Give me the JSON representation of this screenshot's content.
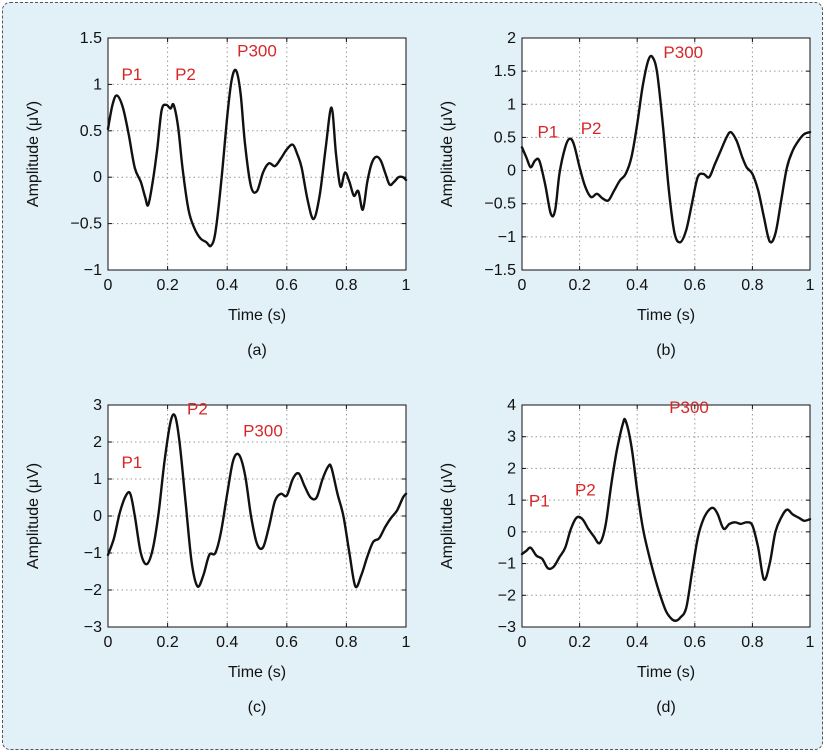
{
  "colors": {
    "background": "#e2f0f8",
    "plot_area": "#ffffff",
    "line": "#111111",
    "annotation": "#d62728",
    "grid": "#9a9a9a"
  },
  "chart_data": [
    {
      "type": "line",
      "caption": "(a)",
      "xlabel": "Time (s)",
      "ylabel": "Amplitude (μV)",
      "xlim": [
        0,
        1
      ],
      "ylim": [
        -1,
        1.5
      ],
      "xticks": [
        0,
        0.2,
        0.4,
        0.6,
        0.8,
        1
      ],
      "yticks": [
        -1,
        -0.5,
        0,
        0.5,
        1,
        1.5
      ],
      "xticklabels": [
        "0",
        "0.2",
        "0.4",
        "0.6",
        "0.8",
        "1"
      ],
      "yticklabels": [
        "−1",
        "−0.5",
        "0",
        "0.5",
        "1",
        "1.5"
      ],
      "grid": true,
      "series": [
        {
          "x": [
            0,
            0.015,
            0.03,
            0.05,
            0.07,
            0.09,
            0.11,
            0.125,
            0.135,
            0.15,
            0.165,
            0.18,
            0.195,
            0.21,
            0.22,
            0.235,
            0.25,
            0.27,
            0.29,
            0.31,
            0.33,
            0.345,
            0.36,
            0.38,
            0.4,
            0.415,
            0.43,
            0.445,
            0.46,
            0.48,
            0.5,
            0.52,
            0.54,
            0.56,
            0.58,
            0.6,
            0.62,
            0.635,
            0.65,
            0.67,
            0.69,
            0.71,
            0.73,
            0.75,
            0.765,
            0.78,
            0.795,
            0.81,
            0.825,
            0.84,
            0.855,
            0.87,
            0.885,
            0.9,
            0.915,
            0.93,
            0.945,
            0.96,
            0.975,
            0.99,
            1.0
          ],
          "y": [
            0.52,
            0.78,
            0.88,
            0.75,
            0.45,
            0.1,
            -0.05,
            -0.22,
            -0.3,
            -0.05,
            0.3,
            0.72,
            0.78,
            0.74,
            0.78,
            0.55,
            0.1,
            -0.35,
            -0.55,
            -0.66,
            -0.7,
            -0.74,
            -0.6,
            -0.05,
            0.65,
            1.05,
            1.15,
            0.9,
            0.35,
            -0.1,
            -0.15,
            0.05,
            0.15,
            0.12,
            0.2,
            0.3,
            0.35,
            0.25,
            0.1,
            -0.25,
            -0.45,
            -0.2,
            0.3,
            0.75,
            0.25,
            -0.1,
            0.05,
            -0.05,
            -0.2,
            -0.15,
            -0.35,
            -0.05,
            0.15,
            0.22,
            0.18,
            0.05,
            -0.08,
            -0.05,
            0.0,
            0.0,
            -0.03
          ]
        }
      ],
      "annotations": [
        {
          "text": "P1",
          "x": 0.08,
          "y": 1.05
        },
        {
          "text": "P2",
          "x": 0.26,
          "y": 1.05
        },
        {
          "text": "P300",
          "x": 0.5,
          "y": 1.3
        }
      ]
    },
    {
      "type": "line",
      "caption": "(b)",
      "xlabel": "Time (s)",
      "ylabel": "Amplitude (μV)",
      "xlim": [
        0,
        1
      ],
      "ylim": [
        -1.5,
        2
      ],
      "xticks": [
        0,
        0.2,
        0.4,
        0.6,
        0.8,
        1
      ],
      "yticks": [
        -1.5,
        -1,
        -0.5,
        0,
        0.5,
        1,
        1.5,
        2
      ],
      "xticklabels": [
        "0",
        "0.2",
        "0.4",
        "0.6",
        "0.8",
        "1"
      ],
      "yticklabels": [
        "−1.5",
        "−1",
        "−0.5",
        "0",
        "0.5",
        "1",
        "1.5",
        "2"
      ],
      "grid": true,
      "series": [
        {
          "x": [
            0,
            0.015,
            0.03,
            0.045,
            0.06,
            0.08,
            0.1,
            0.115,
            0.13,
            0.15,
            0.165,
            0.18,
            0.2,
            0.22,
            0.24,
            0.26,
            0.28,
            0.3,
            0.32,
            0.34,
            0.36,
            0.38,
            0.4,
            0.42,
            0.44,
            0.455,
            0.47,
            0.49,
            0.51,
            0.53,
            0.55,
            0.57,
            0.59,
            0.61,
            0.63,
            0.65,
            0.67,
            0.69,
            0.71,
            0.725,
            0.745,
            0.765,
            0.78,
            0.8,
            0.82,
            0.84,
            0.86,
            0.88,
            0.9,
            0.92,
            0.94,
            0.96,
            0.98,
            1.0
          ],
          "y": [
            0.35,
            0.2,
            0.05,
            0.15,
            0.15,
            -0.2,
            -0.65,
            -0.6,
            -0.05,
            0.35,
            0.48,
            0.4,
            0.05,
            -0.25,
            -0.4,
            -0.35,
            -0.42,
            -0.45,
            -0.3,
            -0.15,
            -0.05,
            0.2,
            0.7,
            1.3,
            1.68,
            1.7,
            1.45,
            0.65,
            -0.3,
            -0.95,
            -1.08,
            -0.9,
            -0.5,
            -0.1,
            -0.05,
            -0.1,
            0.1,
            0.3,
            0.5,
            0.58,
            0.45,
            0.2,
            0.05,
            -0.05,
            -0.3,
            -0.7,
            -1.07,
            -0.95,
            -0.45,
            0.05,
            0.3,
            0.45,
            0.55,
            0.58
          ]
        }
      ],
      "annotations": [
        {
          "text": "P1",
          "x": 0.09,
          "y": 0.5
        },
        {
          "text": "P2",
          "x": 0.24,
          "y": 0.55
        },
        {
          "text": "P300",
          "x": 0.56,
          "y": 1.7
        }
      ]
    },
    {
      "type": "line",
      "caption": "(c)",
      "xlabel": "Time (s)",
      "ylabel": "Amplitude (μV)",
      "xlim": [
        0,
        1
      ],
      "ylim": [
        -3,
        3
      ],
      "xticks": [
        0,
        0.2,
        0.4,
        0.6,
        0.8,
        1
      ],
      "yticks": [
        -3,
        -2,
        -1,
        0,
        1,
        2,
        3
      ],
      "xticklabels": [
        "0",
        "0.2",
        "0.4",
        "0.6",
        "0.8",
        "1"
      ],
      "yticklabels": [
        "−3",
        "−2",
        "−1",
        "0",
        "1",
        "2",
        "3"
      ],
      "grid": true,
      "series": [
        {
          "x": [
            0,
            0.02,
            0.04,
            0.06,
            0.075,
            0.09,
            0.11,
            0.13,
            0.15,
            0.17,
            0.19,
            0.21,
            0.225,
            0.24,
            0.26,
            0.28,
            0.3,
            0.32,
            0.34,
            0.36,
            0.38,
            0.4,
            0.42,
            0.44,
            0.46,
            0.48,
            0.5,
            0.52,
            0.54,
            0.56,
            0.58,
            0.6,
            0.62,
            0.64,
            0.66,
            0.68,
            0.7,
            0.72,
            0.74,
            0.75,
            0.77,
            0.79,
            0.81,
            0.83,
            0.85,
            0.87,
            0.89,
            0.91,
            0.93,
            0.95,
            0.97,
            0.99,
            1.0
          ],
          "y": [
            -1.05,
            -0.6,
            0.1,
            0.55,
            0.6,
            0.0,
            -1.0,
            -1.3,
            -0.9,
            0.1,
            1.5,
            2.55,
            2.7,
            2.0,
            0.4,
            -1.2,
            -1.9,
            -1.6,
            -1.05,
            -1.0,
            -0.4,
            0.6,
            1.5,
            1.65,
            1.1,
            0.0,
            -0.75,
            -0.85,
            -0.3,
            0.4,
            0.6,
            0.55,
            1.0,
            1.15,
            0.8,
            0.5,
            0.5,
            1.0,
            1.35,
            1.3,
            0.6,
            0.0,
            -1.0,
            -1.9,
            -1.6,
            -1.1,
            -0.7,
            -0.6,
            -0.3,
            -0.05,
            0.15,
            0.5,
            0.6
          ]
        }
      ],
      "annotations": [
        {
          "text": "P1",
          "x": 0.08,
          "y": 1.3
        },
        {
          "text": "P2",
          "x": 0.3,
          "y": 2.75
        },
        {
          "text": "P300",
          "x": 0.52,
          "y": 2.15
        }
      ]
    },
    {
      "type": "line",
      "caption": "(d)",
      "xlabel": "Time (s)",
      "ylabel": "Amplitude (μV)",
      "xlim": [
        0,
        1
      ],
      "ylim": [
        -3,
        4
      ],
      "xticks": [
        0,
        0.2,
        0.4,
        0.6,
        0.8,
        1
      ],
      "yticks": [
        -3,
        -2,
        -1,
        0,
        1,
        2,
        3,
        4
      ],
      "xticklabels": [
        "0",
        "0.2",
        "0.4",
        "0.6",
        "0.8",
        "1"
      ],
      "yticklabels": [
        "−3",
        "−2",
        "−1",
        "0",
        "1",
        "2",
        "3",
        "4"
      ],
      "grid": true,
      "series": [
        {
          "x": [
            0,
            0.015,
            0.03,
            0.05,
            0.07,
            0.09,
            0.11,
            0.13,
            0.15,
            0.17,
            0.19,
            0.21,
            0.23,
            0.25,
            0.27,
            0.29,
            0.31,
            0.33,
            0.35,
            0.36,
            0.38,
            0.4,
            0.42,
            0.44,
            0.46,
            0.48,
            0.5,
            0.52,
            0.535,
            0.55,
            0.57,
            0.59,
            0.61,
            0.63,
            0.65,
            0.665,
            0.68,
            0.7,
            0.72,
            0.74,
            0.76,
            0.78,
            0.8,
            0.82,
            0.84,
            0.86,
            0.88,
            0.9,
            0.92,
            0.94,
            0.96,
            0.98,
            1.0
          ],
          "y": [
            -0.7,
            -0.6,
            -0.5,
            -0.75,
            -0.85,
            -1.15,
            -1.1,
            -0.8,
            -0.5,
            0.1,
            0.45,
            0.4,
            0.1,
            -0.15,
            -0.35,
            0.2,
            1.5,
            2.6,
            3.4,
            3.5,
            2.7,
            1.3,
            0.1,
            -0.7,
            -1.4,
            -2.0,
            -2.5,
            -2.75,
            -2.8,
            -2.7,
            -2.4,
            -1.3,
            -0.2,
            0.4,
            0.7,
            0.75,
            0.55,
            0.1,
            0.25,
            0.3,
            0.25,
            0.3,
            0.2,
            -0.5,
            -1.5,
            -1.0,
            0.0,
            0.45,
            0.7,
            0.55,
            0.45,
            0.35,
            0.4
          ]
        }
      ],
      "annotations": [
        {
          "text": "P1",
          "x": 0.06,
          "y": 0.8
        },
        {
          "text": "P2",
          "x": 0.22,
          "y": 1.15
        },
        {
          "text": "P300",
          "x": 0.58,
          "y": 3.75
        }
      ]
    }
  ]
}
